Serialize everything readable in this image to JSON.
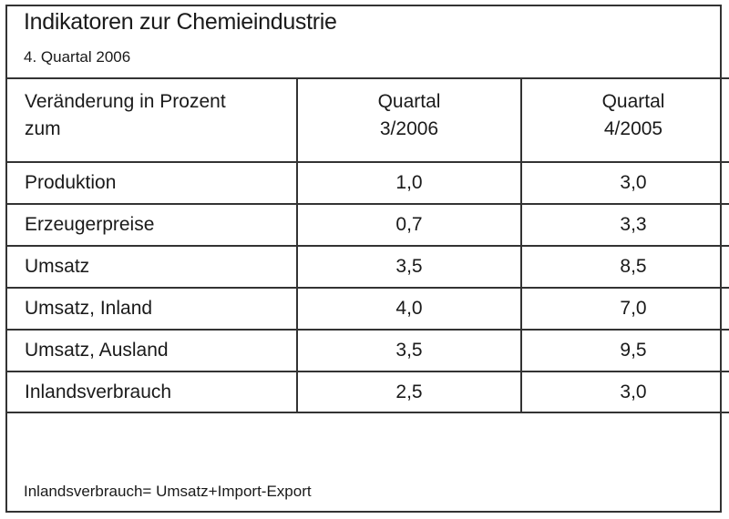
{
  "title": "Indikatoren zur Chemieindustrie",
  "subtitle": "4. Quartal 2006",
  "table": {
    "header": {
      "col1_line1": "Veränderung in Prozent",
      "col1_line2": "zum",
      "col2_line1": "Quartal",
      "col2_line2": "3/2006",
      "col3_line1": "Quartal",
      "col3_line2": "4/2005"
    },
    "rows": [
      {
        "label": "Produktion",
        "q3_2006": "1,0",
        "q4_2005": "3,0"
      },
      {
        "label": "Erzeugerpreise",
        "q3_2006": "0,7",
        "q4_2005": "3,3"
      },
      {
        "label": "Umsatz",
        "q3_2006": "3,5",
        "q4_2005": "8,5"
      },
      {
        "label": "Umsatz, Inland",
        "q3_2006": "4,0",
        "q4_2005": "7,0"
      },
      {
        "label": "Umsatz, Ausland",
        "q3_2006": "3,5",
        "q4_2005": "9,5"
      },
      {
        "label": "Inlandsverbrauch",
        "q3_2006": "2,5",
        "q4_2005": "3,0"
      }
    ]
  },
  "footnote": "Inlandsverbrauch= Umsatz+Import-Export"
}
